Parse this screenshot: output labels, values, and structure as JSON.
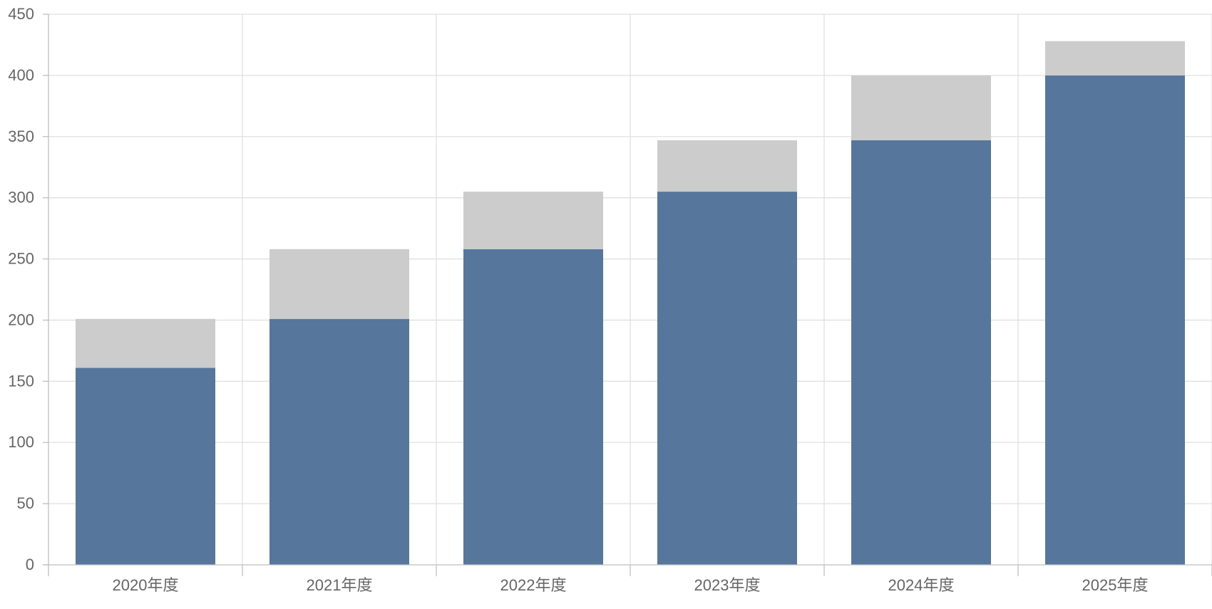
{
  "chart_data": {
    "type": "bar",
    "stacked": true,
    "categories": [
      "2020年度",
      "2021年度",
      "2022年度",
      "2023年度",
      "2024年度",
      "2025年度"
    ],
    "series": [
      {
        "values": [
          161,
          201,
          258,
          305,
          347,
          400
        ],
        "color": "#56769c"
      },
      {
        "values": [
          40,
          57,
          47,
          42,
          53,
          28
        ],
        "color": "#cccccc"
      }
    ],
    "yticks": [
      0,
      50,
      100,
      150,
      200,
      250,
      300,
      350,
      400,
      450
    ],
    "ylim": [
      0,
      450
    ],
    "grid": true,
    "title": "",
    "xlabel": "",
    "ylabel": ""
  }
}
